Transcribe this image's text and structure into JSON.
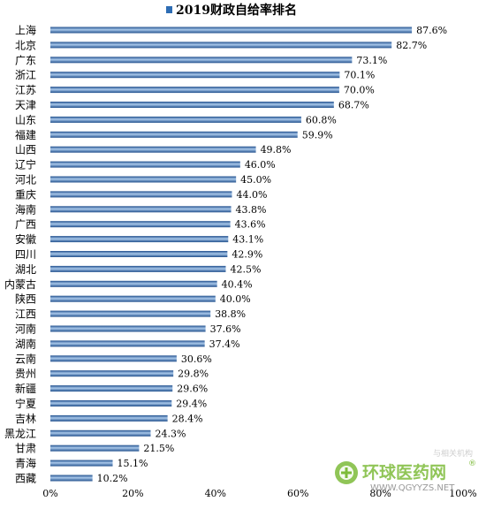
{
  "chart_data": {
    "type": "bar",
    "orientation": "horizontal",
    "title": "2019财政自给率排名",
    "legend": {
      "label": "2019财政自给率排名",
      "position": "top"
    },
    "categories": [
      "上海",
      "北京",
      "广东",
      "浙江",
      "江苏",
      "天津",
      "山东",
      "福建",
      "山西",
      "辽宁",
      "河北",
      "重庆",
      "海南",
      "广西",
      "安徽",
      "四川",
      "湖北",
      "内蒙古",
      "陕西",
      "江西",
      "河南",
      "湖南",
      "云南",
      "贵州",
      "新疆",
      "宁夏",
      "吉林",
      "黑龙江",
      "甘肃",
      "青海",
      "西藏"
    ],
    "values": [
      87.6,
      82.7,
      73.1,
      70.1,
      70.0,
      68.7,
      60.8,
      59.9,
      49.8,
      46.0,
      45.0,
      44.0,
      43.8,
      43.6,
      43.1,
      42.9,
      42.5,
      40.4,
      40.0,
      38.8,
      37.6,
      37.4,
      30.6,
      29.8,
      29.6,
      29.4,
      28.4,
      24.3,
      21.5,
      15.1,
      10.2
    ],
    "value_labels": [
      "87.6%",
      "82.7%",
      "73.1%",
      "70.1%",
      "70.0%",
      "68.7%",
      "60.8%",
      "59.9%",
      "49.8%",
      "46.0%",
      "45.0%",
      "44.0%",
      "43.8%",
      "43.6%",
      "43.1%",
      "42.9%",
      "42.5%",
      "40.4%",
      "40.0%",
      "38.8%",
      "37.6%",
      "37.4%",
      "30.6%",
      "29.8%",
      "29.6%",
      "29.4%",
      "28.4%",
      "24.3%",
      "21.5%",
      "15.1%",
      "10.2%"
    ],
    "xlim": [
      0,
      100
    ],
    "xticks": [
      "0%",
      "20%",
      "40%",
      "60%",
      "80%",
      "100%"
    ],
    "grid": false,
    "colors": {
      "bar_dark": "#1f4e8c",
      "bar_light": "#a9c8ea",
      "legend_swatch": "#2e6db4",
      "text": "#000000"
    }
  },
  "watermark": {
    "text": "环球医药网",
    "registered": "®",
    "url": "WWW.QGYYZS.NET",
    "partial_text": "与相关机构",
    "color": "#7dbb3a"
  }
}
